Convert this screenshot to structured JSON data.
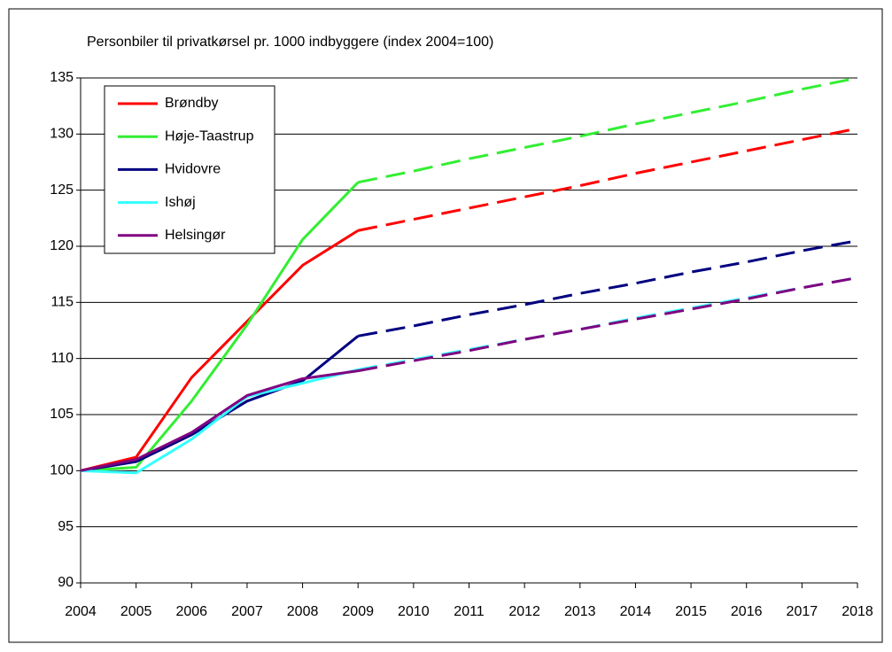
{
  "chart_data": {
    "type": "line",
    "title": "Personbiler til privatkørsel pr. 1000 indbyggere (index 2004=100)",
    "x": [
      2004,
      2005,
      2006,
      2007,
      2008,
      2009,
      2010,
      2011,
      2012,
      2013,
      2014,
      2015,
      2016,
      2017,
      2018
    ],
    "xlim": [
      2004,
      2018
    ],
    "xticks": [
      2004,
      2005,
      2006,
      2007,
      2008,
      2009,
      2010,
      2011,
      2012,
      2013,
      2014,
      2015,
      2016,
      2017,
      2018
    ],
    "ylim": [
      90,
      135
    ],
    "yticks": [
      90,
      95,
      100,
      105,
      110,
      115,
      120,
      125,
      130,
      135
    ],
    "grid": true,
    "legend": "top-left",
    "series": [
      {
        "name": "Brøndby",
        "color": "#ff0000",
        "values": [
          100,
          101.2,
          108.3,
          113.3,
          118.3,
          121.4,
          null,
          null,
          null,
          null,
          null,
          null,
          null,
          null,
          null
        ],
        "forecast": [
          null,
          null,
          null,
          null,
          null,
          121.4,
          122.4,
          123.4,
          124.4,
          125.4,
          126.5,
          127.5,
          128.5,
          129.5,
          130.5
        ]
      },
      {
        "name": "Høje-Taastrup",
        "color": "#33ee33",
        "values": [
          100,
          100.3,
          106.2,
          113.0,
          120.6,
          125.7,
          null,
          null,
          null,
          null,
          null,
          null,
          null,
          null,
          null
        ],
        "forecast": [
          null,
          null,
          null,
          null,
          null,
          125.7,
          126.7,
          127.8,
          128.8,
          129.8,
          130.9,
          131.9,
          132.9,
          134.0,
          135.0
        ]
      },
      {
        "name": "Hvidovre",
        "color": "#000080",
        "values": [
          100,
          100.8,
          103.2,
          106.2,
          108.0,
          112.0,
          null,
          null,
          null,
          null,
          null,
          null,
          null,
          null,
          null
        ],
        "forecast": [
          null,
          null,
          null,
          null,
          null,
          112.0,
          112.9,
          113.9,
          114.8,
          115.8,
          116.7,
          117.7,
          118.6,
          119.6,
          120.5
        ]
      },
      {
        "name": "Ishøj",
        "color": "#33ffff",
        "values": [
          100,
          99.8,
          102.8,
          106.6,
          107.8,
          109.0,
          null,
          null,
          null,
          null,
          null,
          null,
          null,
          null,
          null
        ],
        "forecast": [
          null,
          null,
          null,
          null,
          null,
          109.0,
          109.9,
          110.8,
          111.7,
          112.6,
          113.6,
          114.5,
          115.4,
          116.3,
          117.2
        ]
      },
      {
        "name": "Helsingør",
        "color": "#800080",
        "values": [
          100,
          101.0,
          103.4,
          106.7,
          108.2,
          108.9,
          null,
          null,
          null,
          null,
          null,
          null,
          null,
          null,
          null
        ],
        "forecast": [
          null,
          null,
          null,
          null,
          null,
          108.9,
          109.8,
          110.7,
          111.7,
          112.6,
          113.5,
          114.4,
          115.3,
          116.3,
          117.2
        ]
      }
    ]
  }
}
